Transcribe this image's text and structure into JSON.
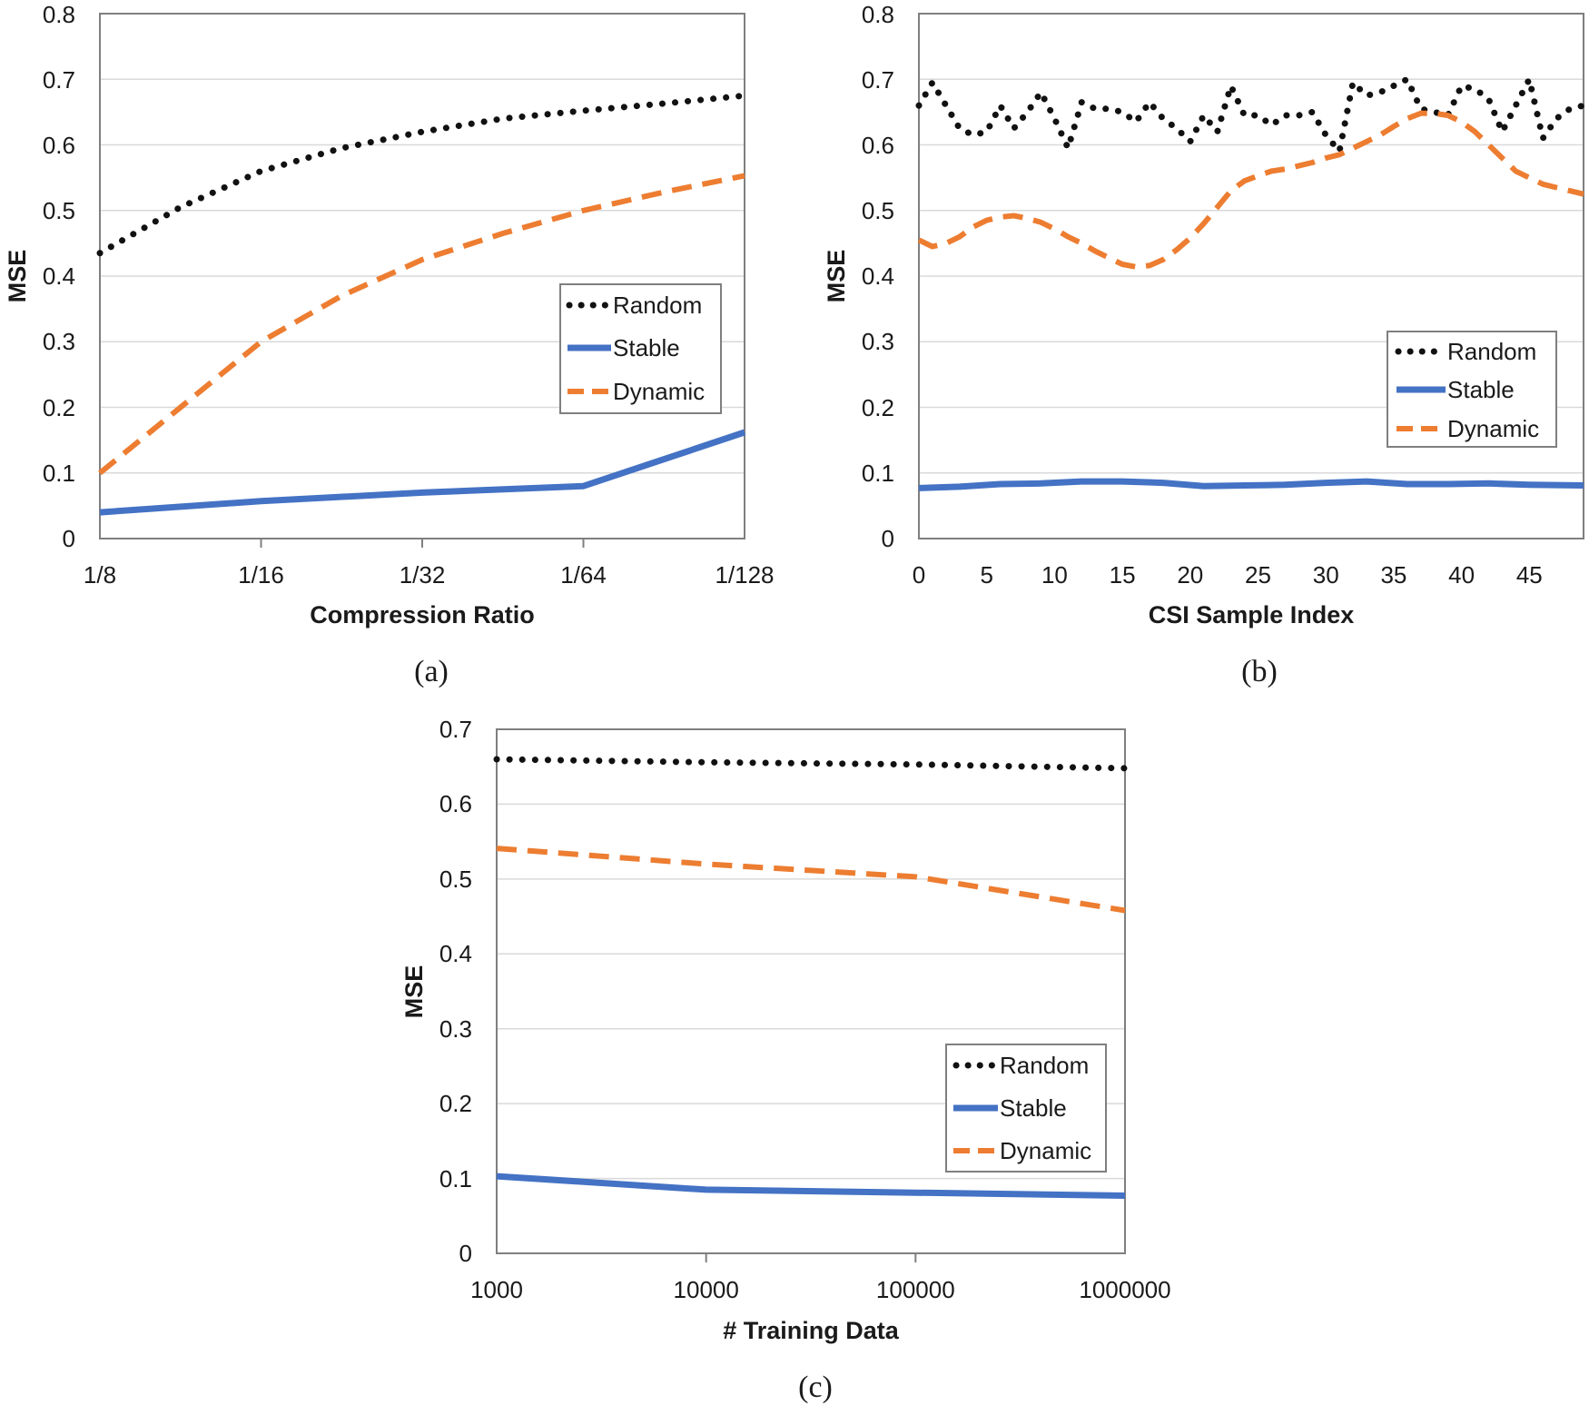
{
  "colors": {
    "random": "#111111",
    "stable": "#4472c4",
    "dynamic": "#ed7d31",
    "grid": "#d9d9d9",
    "frame": "#7f7f7f"
  },
  "chart_data": [
    {
      "type": "line",
      "caption": "(a)",
      "xlabel": "Compression Ratio",
      "ylabel": "MSE",
      "categories": [
        "1/8",
        "1/16",
        "1/32",
        "1/64",
        "1/128"
      ],
      "x_ticks": [
        "1/8",
        "1/16",
        "1/32",
        "1/64",
        "1/128"
      ],
      "y_ticks": [
        "0",
        "0.1",
        "0.2",
        "0.3",
        "0.4",
        "0.5",
        "0.6",
        "0.7",
        "0.8"
      ],
      "ylim": [
        0,
        0.8
      ],
      "grid": "horizontal",
      "legend": "right-middle",
      "series": [
        {
          "name": "Random",
          "style": "dotted",
          "x": [
            0,
            0.5,
            1,
            1.5,
            2,
            2.5,
            3,
            3.5,
            4
          ],
          "values": [
            0.435,
            0.505,
            0.56,
            0.595,
            0.62,
            0.64,
            0.652,
            0.663,
            0.675
          ]
        },
        {
          "name": "Stable",
          "style": "solid",
          "x": [
            0,
            1,
            2,
            3,
            4
          ],
          "values": [
            0.04,
            0.057,
            0.07,
            0.08,
            0.162
          ]
        },
        {
          "name": "Dynamic",
          "style": "dashed",
          "x": [
            0,
            0.5,
            1,
            1.5,
            2,
            2.5,
            3,
            3.5,
            4
          ],
          "values": [
            0.1,
            0.2,
            0.3,
            0.37,
            0.425,
            0.465,
            0.5,
            0.528,
            0.553
          ]
        }
      ]
    },
    {
      "type": "line",
      "caption": "(b)",
      "xlabel": "CSI Sample Index",
      "ylabel": "MSE",
      "x_ticks": [
        "0",
        "5",
        "10",
        "15",
        "20",
        "25",
        "30",
        "35",
        "40",
        "45"
      ],
      "xlim": [
        0,
        49
      ],
      "y_ticks": [
        "0",
        "0.1",
        "0.2",
        "0.3",
        "0.4",
        "0.5",
        "0.6",
        "0.7",
        "0.8"
      ],
      "ylim": [
        0,
        0.8
      ],
      "grid": "horizontal",
      "legend": "right-middle",
      "series": [
        {
          "name": "Random",
          "style": "dotted",
          "x": [
            0,
            1,
            2,
            3,
            4,
            5,
            6,
            7,
            8,
            9,
            10,
            11,
            12,
            13,
            14,
            15,
            16,
            17,
            18,
            19,
            20,
            21,
            22,
            23,
            24,
            25,
            26,
            27,
            28,
            29,
            30,
            31,
            32,
            33,
            34,
            35,
            36,
            37,
            38,
            39,
            40,
            41,
            42,
            43,
            44,
            45,
            46,
            47,
            48,
            49
          ],
          "values": [
            0.66,
            0.695,
            0.66,
            0.625,
            0.615,
            0.62,
            0.66,
            0.625,
            0.65,
            0.68,
            0.64,
            0.595,
            0.665,
            0.655,
            0.655,
            0.65,
            0.635,
            0.665,
            0.64,
            0.625,
            0.605,
            0.645,
            0.62,
            0.69,
            0.645,
            0.645,
            0.63,
            0.645,
            0.645,
            0.65,
            0.615,
            0.59,
            0.695,
            0.675,
            0.68,
            0.69,
            0.7,
            0.655,
            0.65,
            0.645,
            0.69,
            0.685,
            0.67,
            0.62,
            0.66,
            0.7,
            0.61,
            0.64,
            0.655,
            0.66
          ]
        },
        {
          "name": "Stable",
          "style": "solid",
          "x": [
            0,
            3,
            6,
            9,
            12,
            15,
            18,
            21,
            24,
            27,
            30,
            33,
            36,
            39,
            42,
            45,
            49
          ],
          "values": [
            0.077,
            0.079,
            0.083,
            0.084,
            0.087,
            0.087,
            0.085,
            0.08,
            0.081,
            0.082,
            0.085,
            0.087,
            0.083,
            0.083,
            0.084,
            0.082,
            0.081
          ]
        },
        {
          "name": "Dynamic",
          "style": "dashed",
          "x": [
            0,
            1,
            2,
            3,
            4,
            5,
            6,
            7,
            8,
            9,
            10,
            11,
            12,
            13,
            14,
            15,
            16,
            17,
            18,
            19,
            20,
            21,
            22,
            23,
            24,
            25,
            26,
            27,
            28,
            29,
            30,
            31,
            32,
            33,
            34,
            35,
            36,
            37,
            38,
            39,
            40,
            41,
            42,
            43,
            44,
            45,
            46,
            47,
            48,
            49
          ],
          "values": [
            0.455,
            0.445,
            0.45,
            0.46,
            0.475,
            0.485,
            0.49,
            0.492,
            0.488,
            0.482,
            0.472,
            0.46,
            0.45,
            0.438,
            0.428,
            0.418,
            0.414,
            0.416,
            0.425,
            0.44,
            0.458,
            0.48,
            0.505,
            0.53,
            0.545,
            0.553,
            0.56,
            0.563,
            0.568,
            0.573,
            0.58,
            0.585,
            0.595,
            0.605,
            0.615,
            0.628,
            0.64,
            0.648,
            0.648,
            0.645,
            0.635,
            0.62,
            0.6,
            0.58,
            0.56,
            0.55,
            0.54,
            0.535,
            0.53,
            0.525
          ]
        }
      ]
    },
    {
      "type": "line",
      "caption": "(c)",
      "xlabel": "# Training Data",
      "ylabel": "MSE",
      "x_ticks": [
        "1000",
        "10000",
        "100000",
        "1000000"
      ],
      "x_scale": "log",
      "y_ticks": [
        "0",
        "0.1",
        "0.2",
        "0.3",
        "0.4",
        "0.5",
        "0.6",
        "0.7"
      ],
      "ylim": [
        0,
        0.7
      ],
      "grid": "horizontal",
      "legend": "right-middle",
      "series": [
        {
          "name": "Random",
          "style": "dotted",
          "x": [
            0,
            1,
            2,
            3
          ],
          "values": [
            0.66,
            0.656,
            0.653,
            0.648
          ]
        },
        {
          "name": "Stable",
          "style": "solid",
          "x": [
            0,
            1,
            2,
            3
          ],
          "values": [
            0.103,
            0.085,
            0.081,
            0.077
          ]
        },
        {
          "name": "Dynamic",
          "style": "dashed",
          "x": [
            0,
            1,
            2,
            3
          ],
          "values": [
            0.541,
            0.52,
            0.503,
            0.458
          ]
        }
      ]
    }
  ]
}
